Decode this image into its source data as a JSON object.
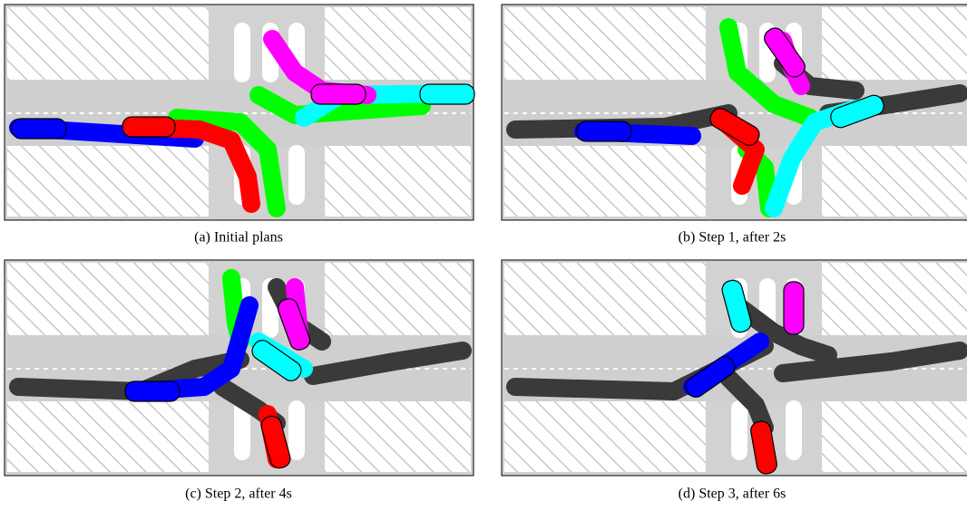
{
  "panels": [
    {
      "caption": "(a) Initial plans"
    },
    {
      "caption": "(b) Step 1, after 2s"
    },
    {
      "caption": "(c) Step 2, after 4s"
    },
    {
      "caption": "(d) Step 3, after 6s"
    }
  ]
}
